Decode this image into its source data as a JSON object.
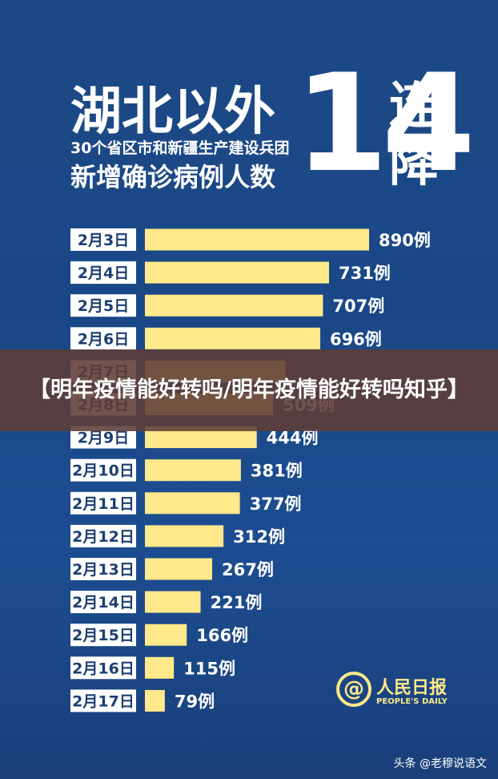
{
  "header": {
    "title_main": "湖北以外",
    "subtitle_line1": "30个省区市和新疆生产建设兵团",
    "subtitle_line2": "新增确诊病例人数",
    "big_number": "14",
    "vertical_text": "连降"
  },
  "banner": {
    "text": "【明年疫情能好转吗/明年疫情能好转吗知乎】"
  },
  "logo": {
    "mark": "@",
    "name": "人民日报",
    "english": "PEOPLE'S DAILY"
  },
  "watermark": "头条 @老穆说语文",
  "colors": {
    "background": "#1d4a86",
    "bar": "#ffe98a",
    "text": "#ffffff"
  },
  "chart_data": {
    "type": "bar",
    "orientation": "horizontal",
    "categories": [
      "2月3日",
      "2月4日",
      "2月5日",
      "2月6日",
      "2月7日",
      "2月8日",
      "2月9日",
      "2月10日",
      "2月11日",
      "2月12日",
      "2月13日",
      "2月14日",
      "2月15日",
      "2月16日",
      "2月17日"
    ],
    "values": [
      890,
      731,
      707,
      696,
      558,
      509,
      444,
      381,
      377,
      312,
      267,
      221,
      166,
      115,
      79
    ],
    "value_labels": [
      "890例",
      "731例",
      "707例",
      "696例",
      "",
      "",
      "444例",
      "381例",
      "377例",
      "312例",
      "267例",
      "221例",
      "166例",
      "115例",
      "79例"
    ],
    "partially_visible_labels": {
      "5": "509例"
    },
    "label_suffix": "例",
    "xlim": [
      0,
      890
    ]
  }
}
